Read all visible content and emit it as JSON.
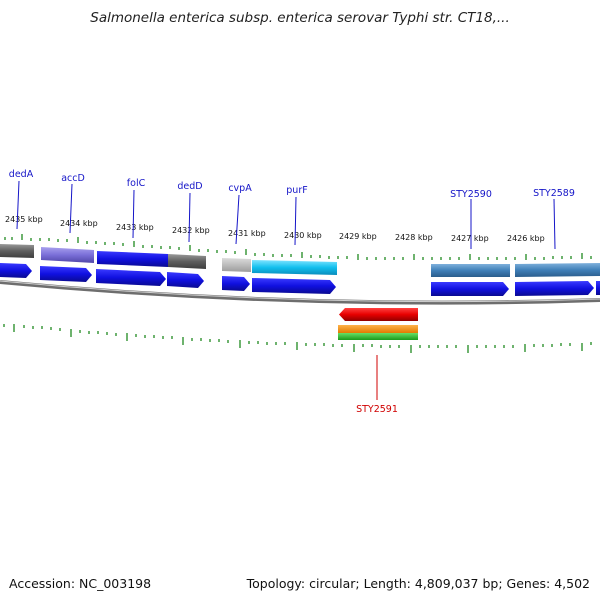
{
  "title": "Salmonella enterica subsp. enterica serovar Typhi str. CT18,...",
  "footer": {
    "accession": "Accession: NC_003198",
    "info": "Topology: circular; Length: 4,809,037 bp; Genes: 4,502"
  },
  "map": {
    "kbp_labels": [
      "2435 kbp",
      "2434 kbp",
      "2433 kbp",
      "2432 kbp",
      "2431 kbp",
      "2430 kbp",
      "2429 kbp",
      "2428 kbp",
      "2427 kbp",
      "2426 kbp"
    ],
    "genes": [
      "dedA",
      "accD",
      "folC",
      "dedD",
      "cvpA",
      "purF",
      "STY2590",
      "STY2589",
      "STY2591"
    ],
    "colors": {
      "forward_strand": "#1a1aee",
      "reverse_strand": "#ee1111",
      "ticks": "#1f8a1f",
      "backbone": "#8a8a8a",
      "gene_label": "#1515c8",
      "gene_label_reverse": "#d00000"
    }
  }
}
